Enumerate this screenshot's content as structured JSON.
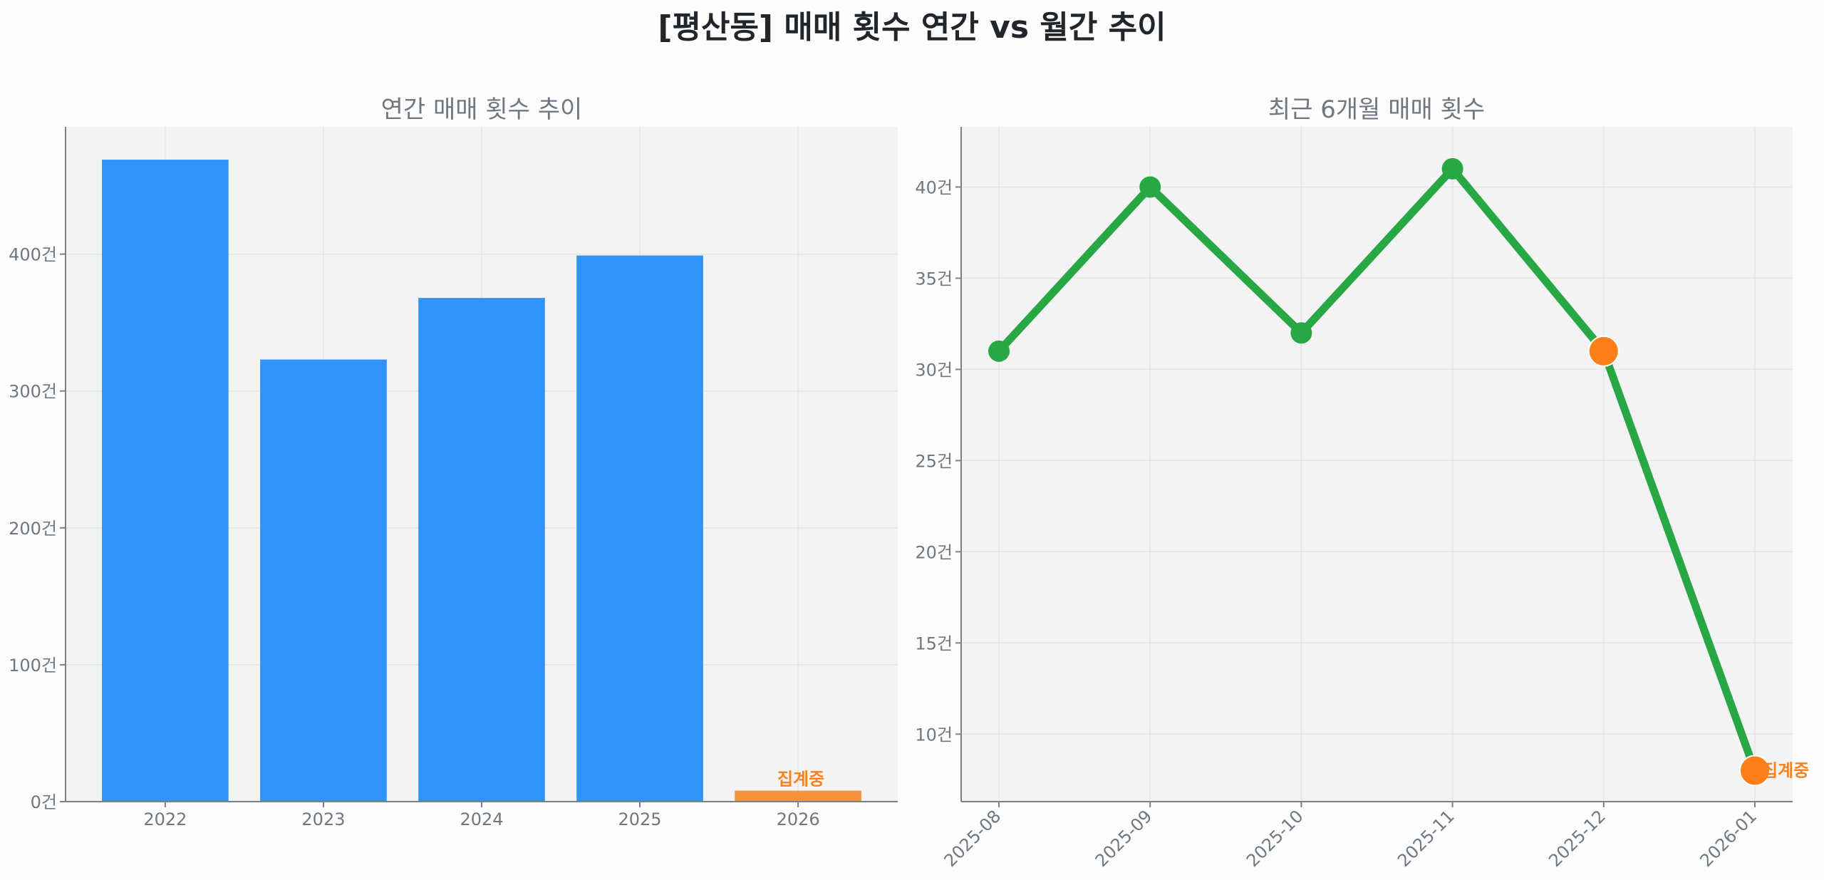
{
  "figure": {
    "title": "[평산동] 매매 횟수 연간 vs 월간 추이",
    "background": "#fdfdfd",
    "axes_background": "#f3f3f3",
    "grid_color": "#e6e6e6",
    "spine_color": "#7a8289",
    "text_color": "#6f7880"
  },
  "chart_data": [
    {
      "type": "bar",
      "title": "연간 매매 횟수 추이",
      "xlabel": "",
      "ylabel": "",
      "categories": [
        "2022",
        "2023",
        "2024",
        "2025",
        "2026"
      ],
      "values": [
        469,
        323,
        368,
        399,
        8
      ],
      "bar_colors": [
        "#3093fa",
        "#3093fa",
        "#3093fa",
        "#3093fa",
        "#f5923e"
      ],
      "yticks": [
        0,
        100,
        200,
        300,
        400
      ],
      "ytick_labels": [
        "0건",
        "100건",
        "200건",
        "300건",
        "400건"
      ],
      "ylim": [
        0,
        493
      ],
      "grid": true,
      "annotations": [
        {
          "category": "2026",
          "text": "집계중",
          "color": "#f5821f"
        }
      ]
    },
    {
      "type": "line",
      "title": "최근 6개월 매매 횟수",
      "xlabel": "",
      "ylabel": "",
      "x": [
        "2025-08",
        "2025-09",
        "2025-10",
        "2025-11",
        "2025-12",
        "2026-01"
      ],
      "series": [
        {
          "name": "매매 횟수",
          "values": [
            31,
            40,
            32,
            41,
            31,
            8
          ],
          "color": "#28a745"
        }
      ],
      "highlight_points": [
        {
          "x": "2025-12",
          "value": 31,
          "color": "#fd7f1a"
        },
        {
          "x": "2026-01",
          "value": 8,
          "color": "#fd7f1a"
        }
      ],
      "yticks": [
        10,
        15,
        20,
        25,
        30,
        35,
        40
      ],
      "ytick_labels": [
        "10건",
        "15건",
        "20건",
        "25건",
        "30건",
        "35건",
        "40건"
      ],
      "ylim": [
        6.3,
        43.3
      ],
      "xtick_rotation": 45,
      "grid": true,
      "annotations": [
        {
          "x": "2026-01",
          "text": "집계중",
          "color": "#f5821f"
        }
      ]
    }
  ]
}
